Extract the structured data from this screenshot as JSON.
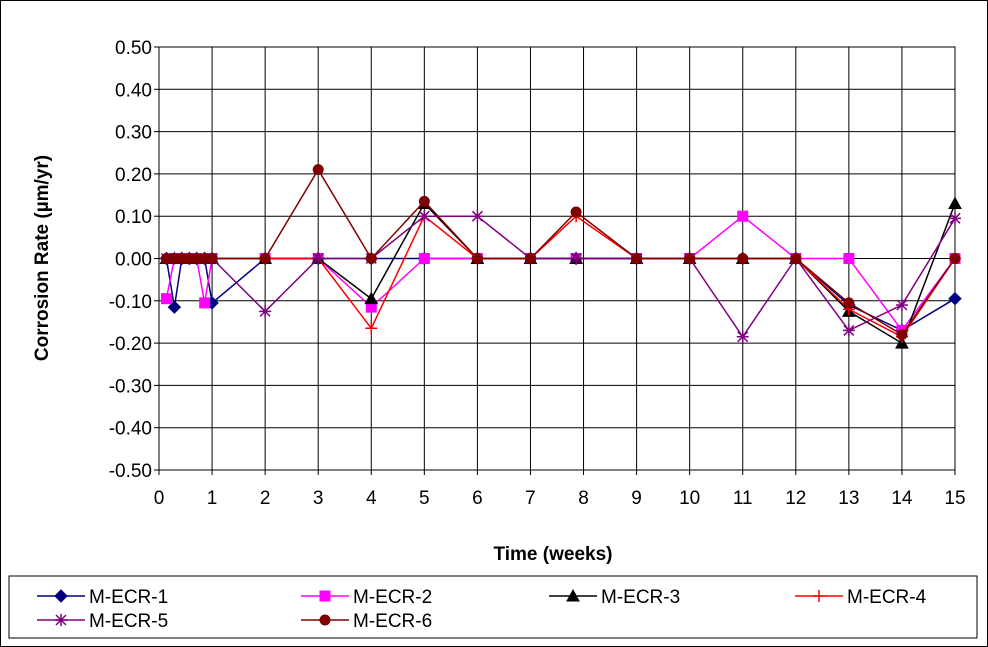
{
  "chart_data": {
    "type": "line",
    "title": "",
    "xlabel": "Time (weeks)",
    "ylabel": "Corrosion Rate (µm/yr)",
    "xlim": [
      0,
      15
    ],
    "ylim": [
      -0.5,
      0.5
    ],
    "x_ticks": [
      0,
      1,
      2,
      3,
      4,
      5,
      6,
      7,
      8,
      9,
      10,
      11,
      12,
      13,
      14,
      15
    ],
    "y_ticks": [
      "0.50",
      "0.40",
      "0.30",
      "0.20",
      "0.10",
      "0.00",
      "-0.10",
      "-0.20",
      "-0.30",
      "-0.40",
      "-0.50"
    ],
    "grid": true,
    "legend_position": "bottom",
    "series": [
      {
        "name": "M-ECR-1",
        "color": "#000080",
        "marker": "diamond",
        "points": [
          [
            0.14,
            0
          ],
          [
            0.29,
            -0.115
          ],
          [
            0.43,
            0
          ],
          [
            0.57,
            0
          ],
          [
            0.71,
            0
          ],
          [
            0.86,
            0
          ],
          [
            1,
            -0.105
          ],
          [
            2,
            0
          ],
          [
            3,
            0
          ],
          [
            4,
            0
          ],
          [
            5,
            0
          ],
          [
            6,
            0
          ],
          [
            7,
            0
          ],
          [
            7.86,
            0
          ],
          [
            9,
            0
          ],
          [
            10,
            0
          ],
          [
            11,
            0
          ],
          [
            12,
            0
          ],
          [
            13,
            -0.11
          ],
          [
            14,
            -0.17
          ],
          [
            15,
            -0.095
          ]
        ]
      },
      {
        "name": "M-ECR-2",
        "color": "#FF00FF",
        "marker": "square",
        "points": [
          [
            0.14,
            -0.095
          ],
          [
            0.29,
            0
          ],
          [
            0.43,
            0
          ],
          [
            0.57,
            0
          ],
          [
            0.71,
            0
          ],
          [
            0.86,
            -0.105
          ],
          [
            1,
            0
          ],
          [
            2,
            0
          ],
          [
            3,
            0
          ],
          [
            4,
            -0.115
          ],
          [
            5,
            0
          ],
          [
            6,
            0
          ],
          [
            7,
            0
          ],
          [
            7.86,
            0
          ],
          [
            9,
            0
          ],
          [
            10,
            0
          ],
          [
            11,
            0.1
          ],
          [
            12,
            0
          ],
          [
            13,
            0
          ],
          [
            14,
            -0.17
          ],
          [
            15,
            0
          ]
        ]
      },
      {
        "name": "M-ECR-3",
        "color": "#000000",
        "marker": "triangle",
        "points": [
          [
            0.14,
            0
          ],
          [
            0.29,
            0
          ],
          [
            0.43,
            0
          ],
          [
            0.57,
            0
          ],
          [
            0.71,
            0
          ],
          [
            0.86,
            0
          ],
          [
            1,
            0
          ],
          [
            2,
            0
          ],
          [
            3,
            0
          ],
          [
            4,
            -0.095
          ],
          [
            5,
            0.13
          ],
          [
            6,
            0
          ],
          [
            7,
            0
          ],
          [
            7.86,
            0
          ],
          [
            9,
            0
          ],
          [
            10,
            0
          ],
          [
            11,
            0
          ],
          [
            12,
            0
          ],
          [
            13,
            -0.125
          ],
          [
            14,
            -0.2
          ],
          [
            15,
            0.13
          ]
        ]
      },
      {
        "name": "M-ECR-4",
        "color": "#FF0000",
        "marker": "plus",
        "points": [
          [
            0.14,
            0
          ],
          [
            0.29,
            0
          ],
          [
            0.43,
            0
          ],
          [
            0.57,
            0
          ],
          [
            0.71,
            0
          ],
          [
            0.86,
            0
          ],
          [
            1,
            0
          ],
          [
            2,
            0
          ],
          [
            3,
            0
          ],
          [
            4,
            -0.165
          ],
          [
            5,
            0.1
          ],
          [
            6,
            0
          ],
          [
            7,
            0
          ],
          [
            7.86,
            0.1
          ],
          [
            9,
            0
          ],
          [
            10,
            0
          ],
          [
            11,
            0
          ],
          [
            12,
            0
          ],
          [
            13,
            -0.12
          ],
          [
            14,
            -0.185
          ],
          [
            15,
            0
          ]
        ]
      },
      {
        "name": "M-ECR-5",
        "color": "#800080",
        "marker": "star",
        "points": [
          [
            0.14,
            0
          ],
          [
            0.29,
            0
          ],
          [
            0.43,
            0
          ],
          [
            0.57,
            0
          ],
          [
            0.71,
            0
          ],
          [
            0.86,
            0
          ],
          [
            1,
            0
          ],
          [
            2,
            -0.125
          ],
          [
            3,
            0
          ],
          [
            4,
            0
          ],
          [
            5,
            0.1
          ],
          [
            6,
            0.1
          ],
          [
            7,
            0
          ],
          [
            7.86,
            0
          ],
          [
            9,
            0
          ],
          [
            10,
            0
          ],
          [
            11,
            -0.185
          ],
          [
            12,
            0
          ],
          [
            13,
            -0.17
          ],
          [
            14,
            -0.11
          ],
          [
            15,
            0.095
          ]
        ]
      },
      {
        "name": "M-ECR-6",
        "color": "#800000",
        "marker": "circle",
        "points": [
          [
            0.14,
            0
          ],
          [
            0.29,
            0
          ],
          [
            0.43,
            0
          ],
          [
            0.57,
            0
          ],
          [
            0.71,
            0
          ],
          [
            0.86,
            0
          ],
          [
            1,
            0
          ],
          [
            2,
            0
          ],
          [
            3,
            0.21
          ],
          [
            4,
            0
          ],
          [
            5,
            0.135
          ],
          [
            6,
            0
          ],
          [
            7,
            0
          ],
          [
            7.86,
            0.11
          ],
          [
            9,
            0
          ],
          [
            10,
            0
          ],
          [
            11,
            0
          ],
          [
            12,
            0
          ],
          [
            13,
            -0.105
          ],
          [
            14,
            -0.18
          ],
          [
            15,
            0
          ]
        ]
      }
    ]
  }
}
